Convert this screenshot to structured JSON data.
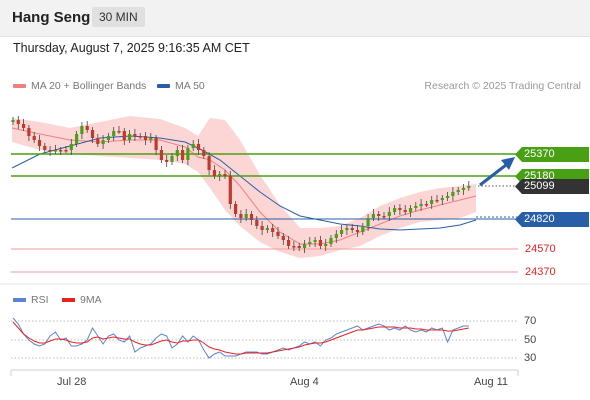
{
  "header": {
    "symbol": "Hang Seng",
    "timeframe": "30 MIN"
  },
  "datetime": "Thursday, August 7, 2025 9:16:35 AM CET",
  "legend": [
    {
      "label": "MA 20 + Bollinger Bands",
      "color": "#f08080"
    },
    {
      "label": "MA 50",
      "color": "#285ea8"
    }
  ],
  "watermark": "Research © 2025 Trading Central",
  "levels": {
    "resistance": [
      {
        "label": "25370",
        "value": 25370,
        "color": "#4aa014"
      },
      {
        "label": "25180",
        "value": 25180,
        "color": "#4aa014"
      }
    ],
    "pivot": {
      "label": "24820",
      "value": 24820,
      "color": "#285ea8"
    },
    "support": [
      {
        "label": "24570",
        "value": 24570,
        "color": "#e8231f"
      },
      {
        "label": "24370",
        "value": 24370,
        "color": "#e8231f"
      }
    ],
    "last_price": {
      "label": "25099",
      "value": 25099
    }
  },
  "rsi_legend": [
    {
      "label": "RSI",
      "color": "#5b84d8"
    },
    {
      "label": "9MA",
      "color": "#e8231f"
    }
  ],
  "rsi_ticks": [
    "70",
    "50",
    "30"
  ],
  "dates": [
    "Jul 28",
    "Aug 4",
    "Aug 11"
  ],
  "colors": {
    "up": "#4aa014",
    "down": "#c0392b",
    "band": "#fcd6d4",
    "ma20": "#f08080",
    "ma50": "#285ea8",
    "rsi": "#5b84d8",
    "rsi_ma": "#e8231f"
  }
}
